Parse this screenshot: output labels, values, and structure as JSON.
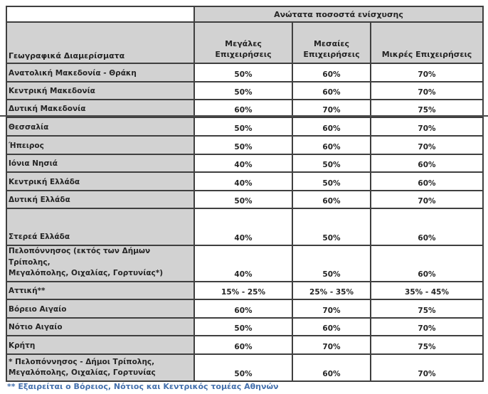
{
  "table": {
    "top_header": "Ανώτατα ποσοστά ενίσχυσης",
    "left_header": "Γεωγραφικά Διαμερίσματα",
    "col_headers": [
      "Μεγάλες\nΕπιχειρήσεις",
      "Μεσαίες\nΕπιχειρήσεις",
      "Μικρές Επιχειρήσεις"
    ],
    "rows": [
      {
        "region": "Ανατολική Μακεδονία - Θράκη",
        "values": [
          "50%",
          "60%",
          "70%"
        ]
      },
      {
        "region": "Κεντρική Μακεδονία",
        "values": [
          "50%",
          "60%",
          "70%"
        ]
      },
      {
        "region": "Δυτική Μακεδονία",
        "values": [
          "60%",
          "70%",
          "75%"
        ]
      },
      {
        "region": "Θεσσαλία",
        "values": [
          "50%",
          "60%",
          "70%"
        ]
      },
      {
        "region": "Ήπειρος",
        "values": [
          "50%",
          "60%",
          "70%"
        ]
      },
      {
        "region": "Ιόνια Νησιά",
        "values": [
          "40%",
          "50%",
          "60%"
        ]
      },
      {
        "region": "Κεντρική Ελλάδα",
        "values": [
          "40%",
          "50%",
          "60%"
        ]
      },
      {
        "region": "Δυτική Ελλάδα",
        "values": [
          "50%",
          "60%",
          "70%"
        ]
      },
      {
        "region": "Στερεά Ελλάδα",
        "values": [
          "40%",
          "50%",
          "60%"
        ]
      },
      {
        "region": "Πελοπόννησος (εκτός των Δήμων Τρίπολης,\nΜεγαλόπολης, Οιχαλίας, Γορτυνίας*)",
        "values": [
          "40%",
          "50%",
          "60%"
        ]
      },
      {
        "region": "Αττική**",
        "values": [
          "15% - 25%",
          "25% - 35%",
          "35% - 45%"
        ]
      },
      {
        "region": "Βόρειο Αιγαίο",
        "values": [
          "60%",
          "70%",
          "75%"
        ]
      },
      {
        "region": "Νότιο Αιγαίο",
        "values": [
          "50%",
          "60%",
          "70%"
        ]
      },
      {
        "region": "Κρήτη",
        "values": [
          "60%",
          "70%",
          "75%"
        ]
      },
      {
        "region": "* Πελοπόννησος - Δήμοι Τρίπολης,\nΜεγαλόπολης, Οιχαλίας, Γορτυνίας",
        "values": [
          "50%",
          "60%",
          "70%"
        ]
      }
    ]
  },
  "footnote": "** Εξαιρείται ο Βόρειος, Νότιος και Κεντρικός τομέας Αθηνών",
  "colors": {
    "header_fill": "#d2d2d2",
    "border": "#3f3f3f",
    "footnote_blue": "#4470ad",
    "text": "#242424"
  }
}
